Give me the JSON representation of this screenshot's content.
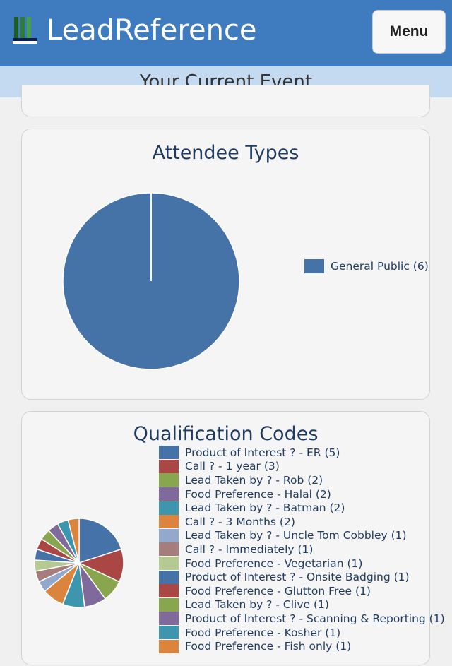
{
  "header": {
    "brand": "LeadReference",
    "menu_label": "Menu"
  },
  "event_bar": {
    "title": "Your Current Event"
  },
  "colors": {
    "header_bg": "#3f7bbf",
    "event_bar_bg": "#c4daf1"
  },
  "attendee_card": {
    "title": "Attendee Types",
    "chart_data": {
      "type": "pie",
      "title": "Attendee Types",
      "slices": [
        {
          "label": "General Public (6)",
          "value": 6,
          "color": "#4572a7"
        }
      ],
      "legend_position": "right"
    }
  },
  "qualification_card": {
    "title": "Qualification Codes",
    "chart_data": {
      "type": "pie",
      "title": "Qualification Codes",
      "legend_position": "right",
      "slices": [
        {
          "label": "Product of Interest ? - ER (5)",
          "value": 5,
          "color": "#4572a7"
        },
        {
          "label": "Call ? - 1 year (3)",
          "value": 3,
          "color": "#aa4643"
        },
        {
          "label": "Lead Taken by ? - Rob (2)",
          "value": 2,
          "color": "#89a54e"
        },
        {
          "label": "Food Preference - Halal (2)",
          "value": 2,
          "color": "#80699b"
        },
        {
          "label": "Lead Taken by ? - Batman (2)",
          "value": 2,
          "color": "#3d96ae"
        },
        {
          "label": "Call ? - 3 Months (2)",
          "value": 2,
          "color": "#db843d"
        },
        {
          "label": "Lead Taken by ? - Uncle Tom Cobbley (1)",
          "value": 1,
          "color": "#92a8cd"
        },
        {
          "label": "Call ? - Immediately (1)",
          "value": 1,
          "color": "#a47d7c"
        },
        {
          "label": "Food Preference - Vegetarian (1)",
          "value": 1,
          "color": "#b5ca92"
        },
        {
          "label": "Product of Interest ? - Onsite Badging (1)",
          "value": 1,
          "color": "#4572a7"
        },
        {
          "label": "Food Preference - Glutton Free (1)",
          "value": 1,
          "color": "#aa4643"
        },
        {
          "label": "Lead Taken by ? - Clive (1)",
          "value": 1,
          "color": "#89a54e"
        },
        {
          "label": "Product of Interest ? - Scanning & Reporting (1)",
          "value": 1,
          "color": "#80699b"
        },
        {
          "label": "Food Preference - Kosher (1)",
          "value": 1,
          "color": "#3d96ae"
        },
        {
          "label": "Food Preference - Fish only (1)",
          "value": 1,
          "color": "#db843d"
        }
      ]
    }
  }
}
